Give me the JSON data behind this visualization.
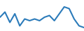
{
  "values": [
    6.5,
    8.0,
    5.0,
    7.5,
    4.0,
    6.0,
    5.5,
    6.0,
    5.5,
    6.5,
    7.0,
    5.5,
    7.5,
    9.5,
    9.0,
    6.0,
    4.0,
    3.5
  ],
  "line_color": "#2b7bba",
  "linewidth": 1.5,
  "background_color": "#ffffff",
  "ylim_min": 2.5,
  "ylim_max": 11.5
}
